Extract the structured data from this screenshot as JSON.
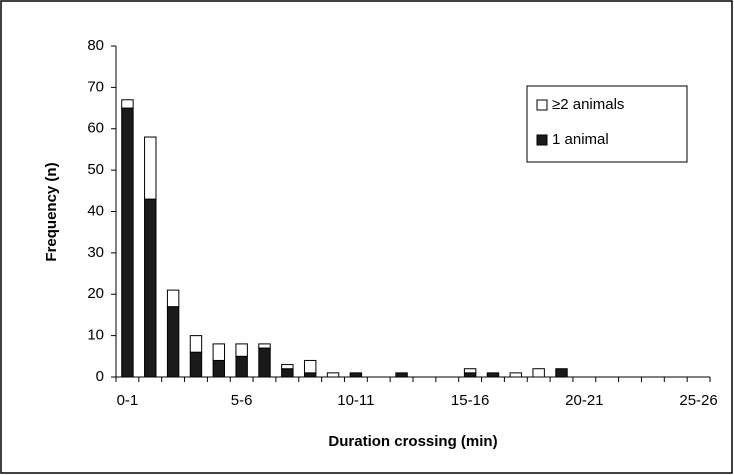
{
  "chart_data": {
    "type": "bar",
    "stacked": true,
    "x_label": "Duration crossing (min)",
    "y_label": "Frequency (n)",
    "categories": [
      "0-1",
      null,
      null,
      null,
      null,
      "5-6",
      null,
      null,
      null,
      null,
      "10-11",
      null,
      null,
      null,
      null,
      "15-16",
      null,
      null,
      null,
      null,
      "20-21",
      null,
      null,
      null,
      null,
      "25-26"
    ],
    "series": [
      {
        "name": "≥2 animals",
        "color": "#ffffff",
        "values": [
          2,
          15,
          4,
          4,
          4,
          3,
          1,
          1,
          3,
          1,
          0,
          0,
          0,
          0,
          0,
          1,
          0,
          1,
          2,
          0,
          0,
          0,
          0,
          0,
          0,
          0
        ]
      },
      {
        "name": "1 animal",
        "color": "#1a1a1a",
        "values": [
          65,
          43,
          17,
          6,
          4,
          5,
          7,
          2,
          1,
          0,
          1,
          0,
          1,
          0,
          0,
          1,
          1,
          0,
          0,
          2,
          0,
          0,
          0,
          0,
          0,
          0
        ]
      }
    ],
    "ylim": [
      0,
      80
    ],
    "yticks": [
      0,
      10,
      20,
      30,
      40,
      50,
      60,
      70,
      80
    ],
    "legend": "top-right"
  }
}
